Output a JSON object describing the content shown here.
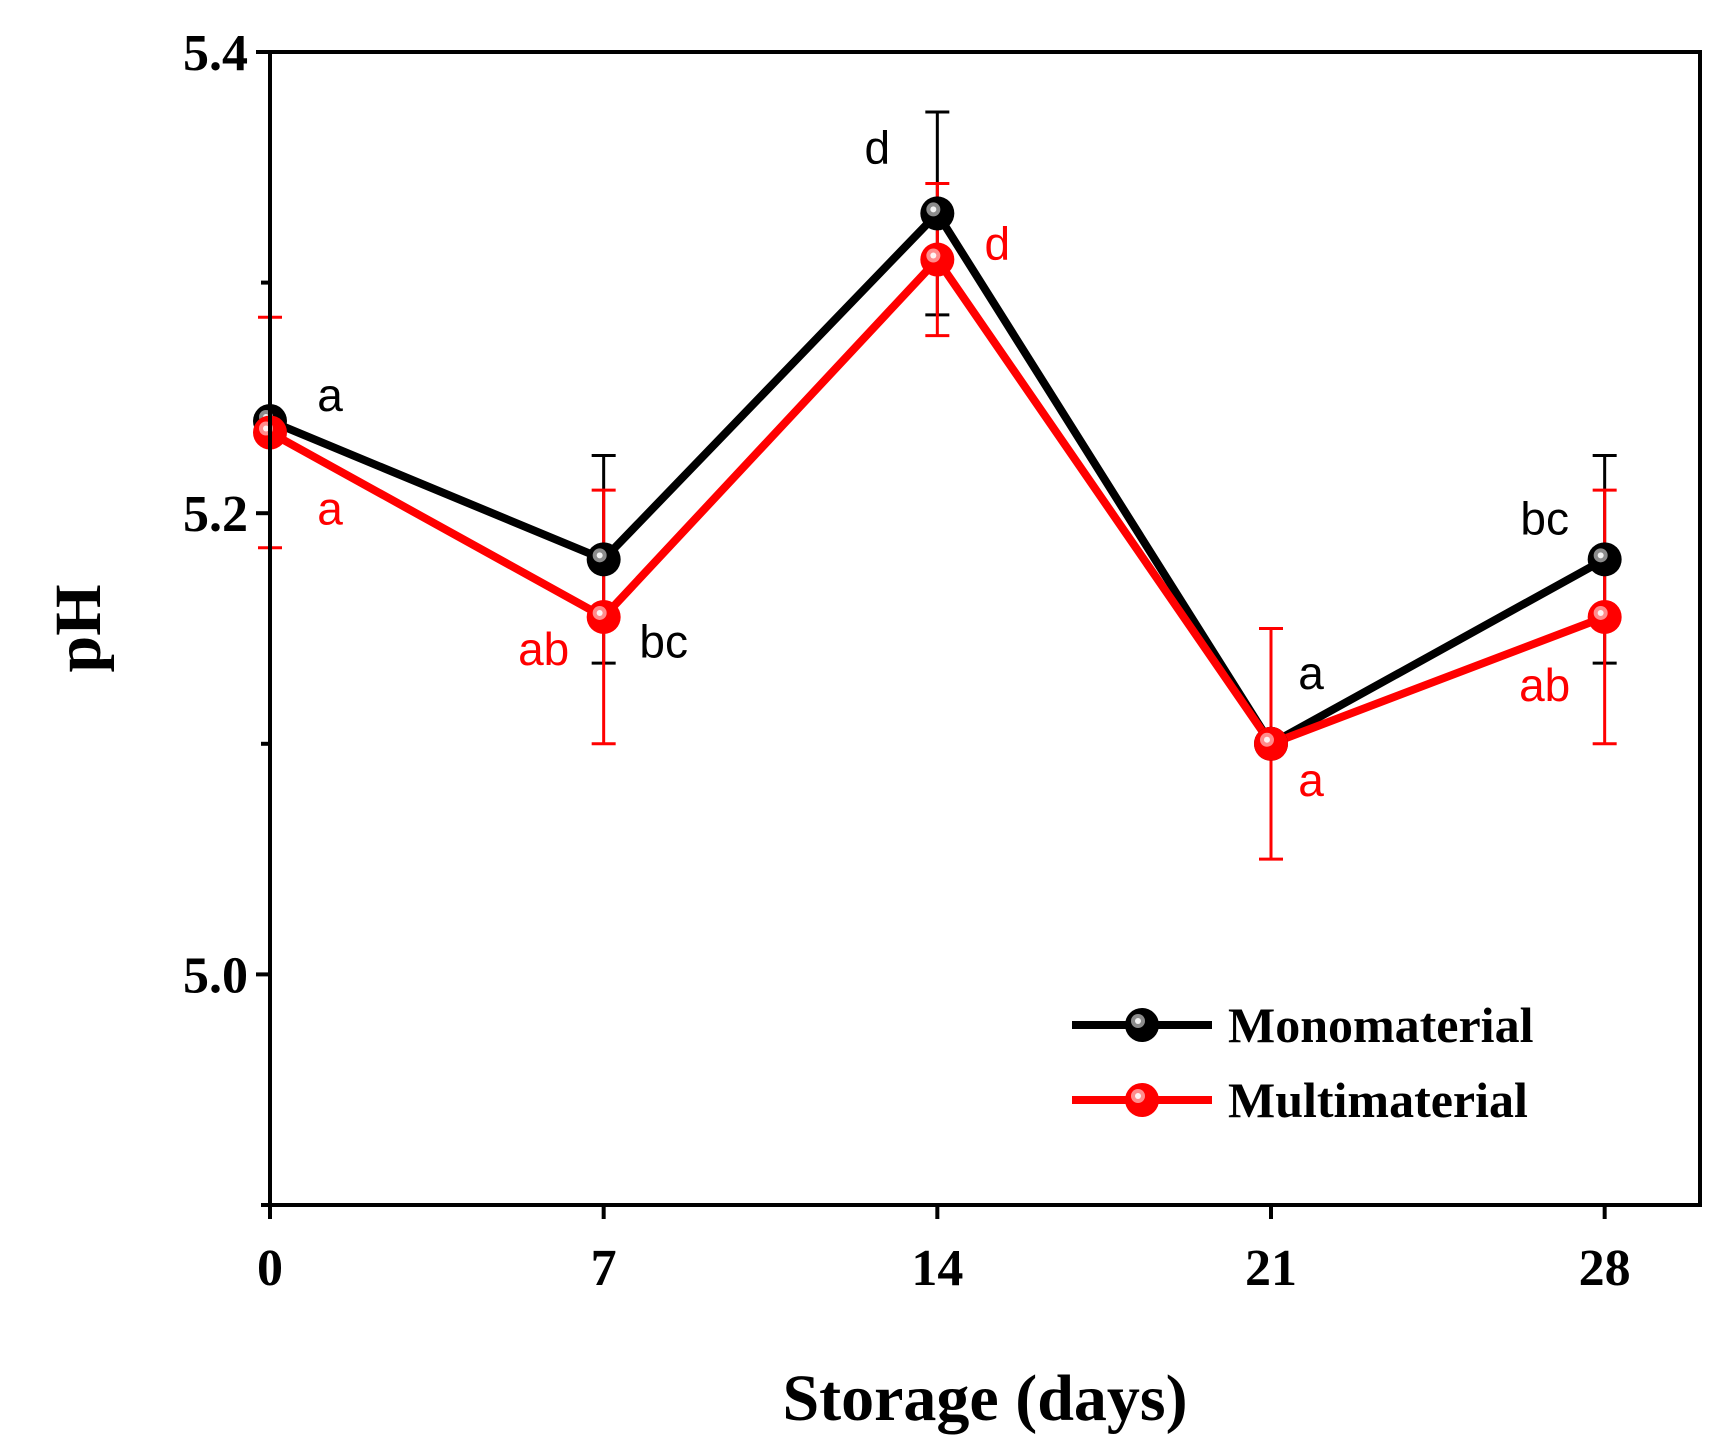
{
  "chart_data": {
    "type": "line",
    "xlabel": "Storage (days)",
    "ylabel": "pH",
    "xlim": [
      0,
      30
    ],
    "ylim": [
      4.9,
      5.4
    ],
    "x_ticks": [
      0,
      7,
      14,
      21,
      28
    ],
    "x_tick_labels": [
      "0",
      "7",
      "14",
      "21",
      "28"
    ],
    "y_ticks_major": [
      5.0,
      5.2,
      5.4
    ],
    "y_tick_labels": [
      "5.0",
      "5.2",
      "5.4"
    ],
    "y_ticks_minor": [
      4.9,
      5.1,
      5.3
    ],
    "grid": false,
    "legend_position": "bottom-right",
    "series": [
      {
        "name": "Monomaterial",
        "color": "#000000",
        "x": [
          0,
          7,
          14,
          21,
          28
        ],
        "y": [
          5.24,
          5.18,
          5.33,
          5.1,
          5.18
        ],
        "error": [
          0,
          0.045,
          0.044,
          0.0,
          0.045
        ],
        "letters": [
          "a",
          "bc",
          "d",
          "a",
          "bc"
        ]
      },
      {
        "name": "Multimaterial",
        "color": "#ff0000",
        "x": [
          0,
          7,
          14,
          21,
          28
        ],
        "y": [
          5.235,
          5.155,
          5.31,
          5.1,
          5.155
        ],
        "error": [
          0.05,
          0.055,
          0.033,
          0.05,
          0.055
        ],
        "letters": [
          "a",
          "ab",
          "d",
          "a",
          "ab"
        ]
      }
    ]
  }
}
